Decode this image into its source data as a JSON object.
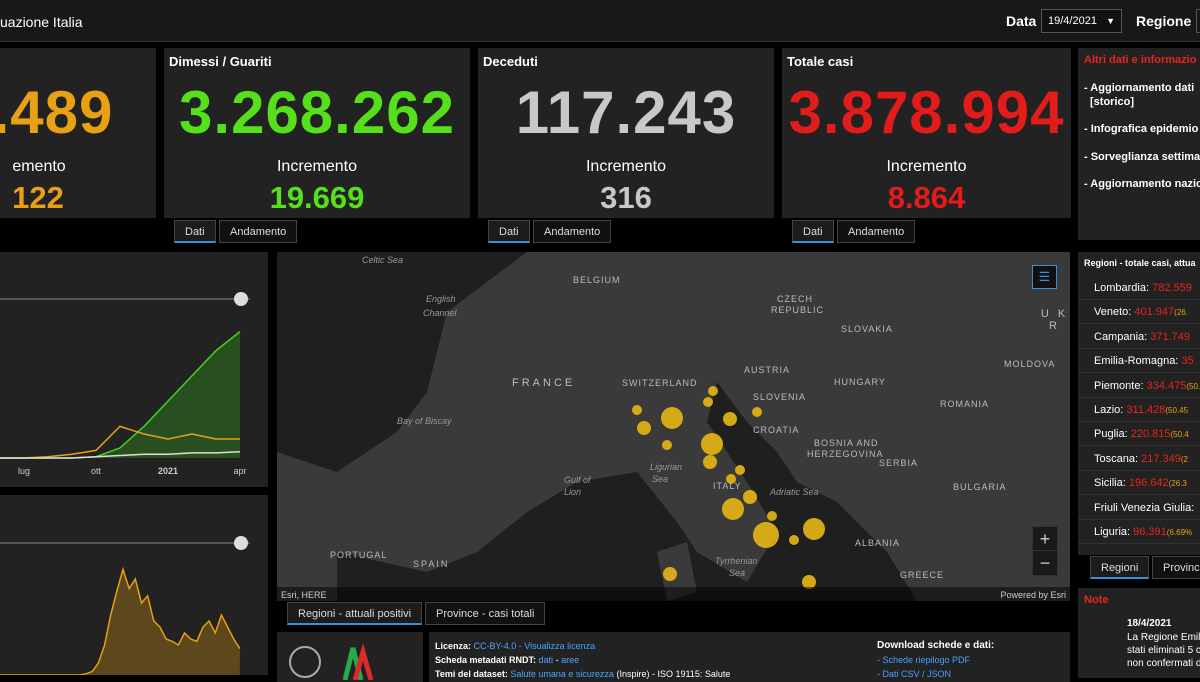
{
  "header": {
    "title": "uazione Italia",
    "date_label": "Data",
    "date": "19/4/2021",
    "region_label": "Regione"
  },
  "cards": [
    {
      "value": ".489",
      "increment_label": "emento",
      "increment": "122"
    },
    {
      "title": "Dimessi / Guariti",
      "value": "3.268.262",
      "increment_label": "Incremento",
      "increment": "19.669",
      "tabs": [
        "Dati",
        "Andamento"
      ]
    },
    {
      "title": "Deceduti",
      "value": "117.243",
      "increment_label": "Incremento",
      "increment": "316",
      "tabs": [
        "Dati",
        "Andamento"
      ]
    },
    {
      "title": "Totale casi",
      "value": "3.878.994",
      "increment_label": "Incremento",
      "increment": "8.864",
      "tabs": [
        "Dati",
        "Andamento"
      ]
    }
  ],
  "info": {
    "title": "Altri dati e informazio",
    "items": [
      "- Aggiornamento dati",
      "[storico]",
      "- Infografica epidemio",
      "- Sorveglianza settima",
      "- Aggiornamento nazio"
    ]
  },
  "regions": {
    "title": "Regioni - totale casi, attua",
    "rows": [
      {
        "name": "Lombardia:",
        "value": "782.559"
      },
      {
        "name": "Veneto:",
        "value": "401.947",
        "extra": "(26."
      },
      {
        "name": "Campania:",
        "value": "371.749"
      },
      {
        "name": "Emilia-Romagna:",
        "value": "35"
      },
      {
        "name": "Piemonte:",
        "value": "334.475",
        "extra": "(50.45"
      },
      {
        "name": "Lazio:",
        "value": "311.428",
        "extra": "(50.45"
      },
      {
        "name": "Puglia:",
        "value": "220.815",
        "extra": "(50.4"
      },
      {
        "name": "Toscana:",
        "value": "217.349",
        "extra": "(2"
      },
      {
        "name": "Sicilia:",
        "value": "196.642",
        "extra": "(26.3"
      },
      {
        "name": "Friuli Venezia Giulia:"
      },
      {
        "name": "Liguria:",
        "value": "96.391",
        "extra": "(6.69%"
      }
    ],
    "tabs": [
      "Regioni",
      "Provinc"
    ]
  },
  "note": {
    "title": "Note",
    "date": "18/4/2021",
    "lines": [
      "La Regione Emili",
      "stati eliminati 5 c",
      "non confermati d"
    ]
  },
  "map": {
    "labels": [
      "Celtic Sea",
      "BELGIUM",
      "English",
      "Channel",
      "CZECH",
      "REPUBLIC",
      "SLOVAKIA",
      "U K R",
      "FRANCE",
      "SWITZERLAND",
      "AUSTRIA",
      "HUNGARY",
      "MOLDOVA",
      "SLOVENIA",
      "ROMANIA",
      "Bay of Biscay",
      "CROATIA",
      "BOSNIA AND",
      "HERZEGOVINA",
      "SERBIA",
      "Ligurian",
      "Sea",
      "Gulf of",
      "Lion",
      "ITALY",
      "Adriatic Sea",
      "BULGARIA",
      "PORTUGAL",
      "SPAIN",
      "Tyrrhenian",
      "Sea",
      "ALBANIA",
      "GREECE"
    ],
    "attribution": "Esri, HERE",
    "powered": "Powered by Esri",
    "zoom_in": "+",
    "zoom_out": "−",
    "tabs": [
      "Regioni - attuali positivi",
      "Province - casi totali"
    ]
  },
  "footer": {
    "license_label": "Licenza:",
    "license": "CC-BY-4.0",
    "license_link": "- Visualizza licenza",
    "rndt_label": "Scheda metadati RNDT:",
    "rndt_dati": "dati",
    "rndt_sep": "-",
    "rndt_aree": "aree",
    "themes_label": "Temi del dataset:",
    "themes": "Salute umana e sicurezza",
    "themes_rest": "(Inspire) - ISO 19115: Salute",
    "download": "Download schede e dati:",
    "pdf": "- Schede riepilogo PDF",
    "csv": "- Dati CSV / JSON"
  },
  "charts": [
    {
      "type": "line",
      "categories": [
        null,
        null,
        null,
        null,
        null,
        null,
        "lug",
        null,
        null,
        "ott",
        null,
        null,
        "2021",
        null,
        null,
        "apr"
      ],
      "ylim": [
        0,
        125
      ],
      "series": [
        {
          "color": "#3fd21c",
          "values": [
            0,
            0,
            0,
            0,
            0,
            0,
            0,
            0,
            0,
            1,
            8,
            25,
            45,
            65,
            85,
            100
          ]
        },
        {
          "color": "#e8a015",
          "values": [
            0,
            0,
            0,
            0,
            0,
            0,
            0,
            1,
            3,
            6,
            25,
            19,
            15,
            19,
            15,
            15
          ]
        },
        {
          "color": "#dddddd",
          "values": [
            0,
            0,
            0,
            0,
            0,
            0,
            0,
            0,
            0,
            1,
            2,
            3,
            3,
            4,
            4,
            5
          ]
        }
      ]
    },
    {
      "type": "area",
      "color": "#e8a015",
      "ylim": [
        0,
        100
      ],
      "values": [
        0,
        0,
        0,
        0,
        0,
        0,
        0,
        0,
        0,
        0,
        0,
        0,
        0,
        0,
        1,
        3,
        10,
        25,
        50,
        70,
        88,
        72,
        80,
        60,
        66,
        45,
        40,
        30,
        28,
        25,
        35,
        30,
        28,
        40,
        45,
        35,
        50,
        40,
        30,
        22
      ]
    }
  ]
}
